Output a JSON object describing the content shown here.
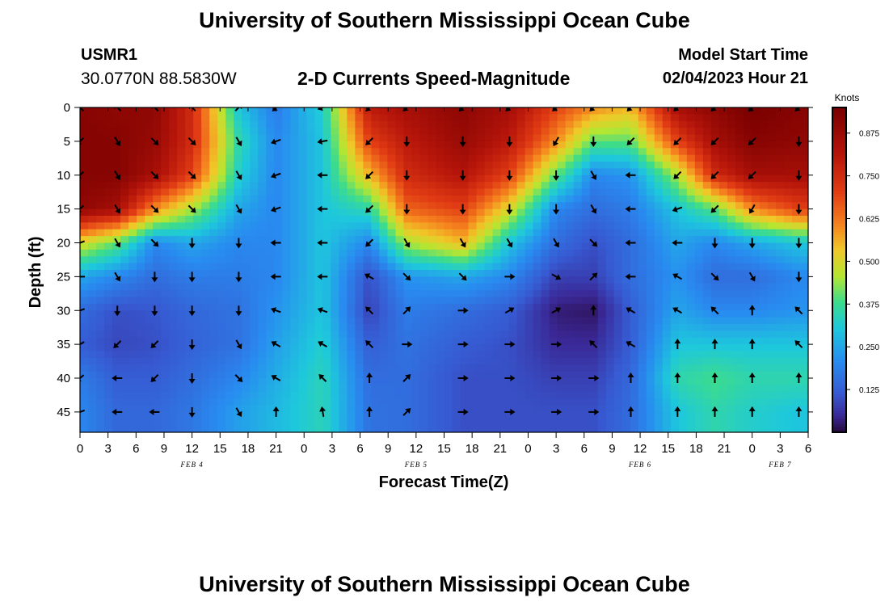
{
  "header": {
    "title": "University of Southern Mississippi Ocean Cube",
    "station_id": "USMR1",
    "station_coords": "30.0770N  88.5830W",
    "plot_title": "2-D Currents Speed-Magnitude",
    "model_start_label": "Model Start Time",
    "model_start_value": "02/04/2023 Hour 21"
  },
  "footer": {
    "title": "University of Southern Mississippi Ocean Cube"
  },
  "chart_data": {
    "type": "heatmap",
    "title": "2-D Currents Speed-Magnitude",
    "xlabel": "Forecast Time(Z)",
    "ylabel": "Depth (ft)",
    "xlim": [
      0,
      78
    ],
    "ylim": [
      48,
      0
    ],
    "x_tick_labels": [
      "0",
      "3",
      "6",
      "9",
      "12",
      "15",
      "18",
      "21",
      "0",
      "3",
      "6",
      "9",
      "12",
      "15",
      "18",
      "21",
      "0",
      "3",
      "6",
      "9",
      "12",
      "15",
      "18",
      "21",
      "0",
      "3",
      "6"
    ],
    "y_ticks": [
      0,
      5,
      10,
      15,
      20,
      25,
      30,
      35,
      40,
      45
    ],
    "date_labels": [
      {
        "hour": 12,
        "label": "FEB 4"
      },
      {
        "hour": 36,
        "label": "FEB 5"
      },
      {
        "hour": 60,
        "label": "FEB 6"
      },
      {
        "hour": 75,
        "label": "FEB 7"
      }
    ],
    "colorbar": {
      "label": "Knots",
      "range": [
        0,
        0.95
      ],
      "ticks": [
        0.125,
        0.25,
        0.375,
        0.5,
        0.625,
        0.75,
        0.875
      ],
      "tick_labels": [
        "0.125",
        "0.250",
        "0.375",
        "0.500",
        "0.625",
        "0.750",
        "0.875"
      ]
    },
    "depths": [
      0,
      5,
      10,
      15,
      20,
      25,
      30,
      35,
      40,
      45
    ],
    "columns": [
      {
        "hour": 0,
        "speeds": [
          0.92,
          0.92,
          0.92,
          0.9,
          0.5,
          0.25,
          0.15,
          0.12,
          0.18,
          0.2
        ],
        "dirs": [
          135,
          225,
          225,
          225,
          200,
          180,
          200,
          210,
          220,
          200
        ]
      },
      {
        "hour": 4,
        "speeds": [
          0.9,
          0.92,
          0.92,
          0.85,
          0.4,
          0.2,
          0.1,
          0.09,
          0.12,
          0.14
        ],
        "dirs": [
          135,
          300,
          300,
          300,
          300,
          300,
          270,
          225,
          180,
          180
        ]
      },
      {
        "hour": 8,
        "speeds": [
          0.9,
          0.88,
          0.85,
          0.6,
          0.2,
          0.15,
          0.11,
          0.1,
          0.12,
          0.14
        ],
        "dirs": [
          135,
          315,
          315,
          315,
          315,
          270,
          270,
          225,
          225,
          180
        ]
      },
      {
        "hour": 12,
        "speeds": [
          0.75,
          0.75,
          0.7,
          0.45,
          0.25,
          0.18,
          0.14,
          0.13,
          0.15,
          0.17
        ],
        "dirs": [
          135,
          315,
          315,
          315,
          270,
          270,
          270,
          270,
          270,
          270
        ]
      },
      {
        "hour": 17,
        "speeds": [
          0.3,
          0.35,
          0.32,
          0.25,
          0.2,
          0.18,
          0.16,
          0.16,
          0.2,
          0.24
        ],
        "dirs": [
          45,
          300,
          300,
          300,
          270,
          270,
          270,
          300,
          315,
          300
        ]
      },
      {
        "hour": 21,
        "speeds": [
          0.18,
          0.2,
          0.2,
          0.2,
          0.2,
          0.2,
          0.22,
          0.24,
          0.26,
          0.28
        ],
        "dirs": [
          225,
          200,
          200,
          200,
          180,
          180,
          160,
          150,
          150,
          90
        ]
      },
      {
        "hour": 26,
        "speeds": [
          0.32,
          0.3,
          0.3,
          0.3,
          0.3,
          0.3,
          0.3,
          0.32,
          0.34,
          0.34
        ],
        "dirs": [
          200,
          190,
          180,
          180,
          180,
          180,
          160,
          150,
          135,
          100
        ]
      },
      {
        "hour": 31,
        "speeds": [
          0.8,
          0.7,
          0.55,
          0.35,
          0.2,
          0.1,
          0.08,
          0.12,
          0.15,
          0.16
        ],
        "dirs": [
          225,
          225,
          225,
          225,
          225,
          150,
          135,
          135,
          90,
          90
        ]
      },
      {
        "hour": 35,
        "speeds": [
          0.85,
          0.8,
          0.75,
          0.65,
          0.45,
          0.22,
          0.18,
          0.16,
          0.15,
          0.15
        ],
        "dirs": [
          225,
          270,
          270,
          270,
          300,
          315,
          45,
          0,
          45,
          45
        ]
      },
      {
        "hour": 41,
        "speeds": [
          0.9,
          0.88,
          0.82,
          0.7,
          0.55,
          0.25,
          0.15,
          0.12,
          0.1,
          0.1
        ],
        "dirs": [
          225,
          270,
          270,
          270,
          300,
          315,
          0,
          0,
          0,
          0
        ]
      },
      {
        "hour": 46,
        "speeds": [
          0.85,
          0.8,
          0.7,
          0.5,
          0.3,
          0.2,
          0.12,
          0.1,
          0.1,
          0.1
        ],
        "dirs": [
          225,
          270,
          270,
          270,
          300,
          0,
          30,
          0,
          0,
          0
        ]
      },
      {
        "hour": 51,
        "speeds": [
          0.7,
          0.6,
          0.4,
          0.2,
          0.15,
          0.08,
          0.03,
          0.05,
          0.08,
          0.1
        ],
        "dirs": [
          225,
          240,
          270,
          270,
          300,
          330,
          30,
          0,
          0,
          0
        ]
      },
      {
        "hour": 55,
        "speeds": [
          0.6,
          0.4,
          0.2,
          0.15,
          0.1,
          0.08,
          0.02,
          0.05,
          0.08,
          0.1
        ],
        "dirs": [
          225,
          270,
          300,
          300,
          315,
          45,
          90,
          135,
          0,
          0
        ]
      },
      {
        "hour": 59,
        "speeds": [
          0.55,
          0.4,
          0.22,
          0.18,
          0.15,
          0.15,
          0.12,
          0.12,
          0.14,
          0.15
        ],
        "dirs": [
          225,
          225,
          180,
          180,
          180,
          180,
          150,
          150,
          90,
          90
        ]
      },
      {
        "hour": 64,
        "speeds": [
          0.85,
          0.7,
          0.45,
          0.3,
          0.25,
          0.22,
          0.25,
          0.3,
          0.35,
          0.3
        ],
        "dirs": [
          225,
          225,
          225,
          200,
          180,
          150,
          150,
          90,
          90,
          90
        ]
      },
      {
        "hour": 68,
        "speeds": [
          0.9,
          0.85,
          0.75,
          0.4,
          0.2,
          0.15,
          0.2,
          0.3,
          0.38,
          0.35
        ],
        "dirs": [
          225,
          225,
          225,
          225,
          270,
          315,
          135,
          90,
          90,
          90
        ]
      },
      {
        "hour": 72,
        "speeds": [
          0.95,
          0.92,
          0.85,
          0.6,
          0.25,
          0.15,
          0.2,
          0.3,
          0.35,
          0.32
        ],
        "dirs": [
          225,
          225,
          225,
          240,
          270,
          300,
          90,
          90,
          90,
          90
        ]
      },
      {
        "hour": 77,
        "speeds": [
          0.92,
          0.9,
          0.85,
          0.7,
          0.3,
          0.2,
          0.22,
          0.3,
          0.35,
          0.3
        ],
        "dirs": [
          225,
          270,
          270,
          270,
          270,
          270,
          135,
          135,
          90,
          90
        ]
      }
    ]
  }
}
